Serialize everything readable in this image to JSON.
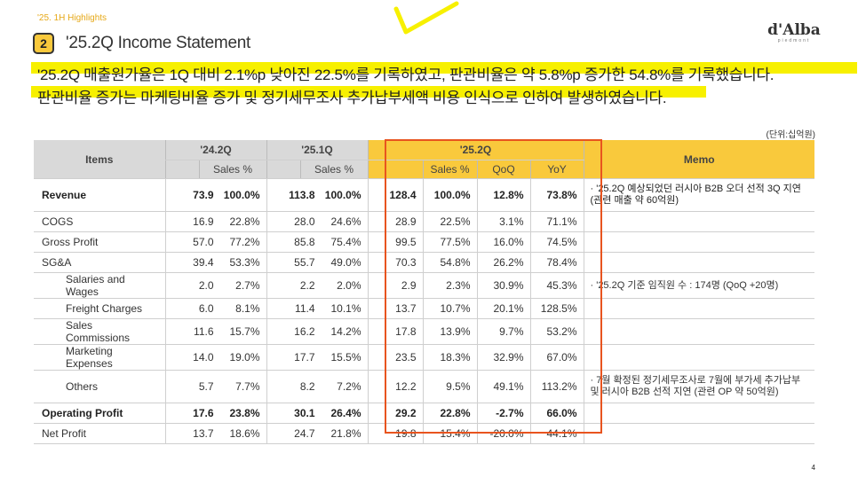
{
  "header": {
    "section_tag": "'25. 1H Highlights",
    "number": "2",
    "title": "'25.2Q Income Statement",
    "logo_word": "d'Alba",
    "logo_sub": "piedmont"
  },
  "summary": {
    "line1": "'25.2Q 매출원가율은 1Q 대비 2.1%p 낮아진 22.5%를 기록하였고, 판관비율은 약 5.8%p 증가한 54.8%를 기록했습니다.",
    "line2": "판관비율 증가는 마케팅비율 증가 및 정기세무조사 추가납부세액 비용 인식으로 인하여 발생하였습니다."
  },
  "unit_label": "(단위:십억원)",
  "table": {
    "headers": {
      "items": "Items",
      "p1": "'24.2Q",
      "p2": "'25.1Q",
      "p3": "'25.2Q",
      "memo": "Memo",
      "sales_pct": "Sales %",
      "qoq": "QoQ",
      "yoy": "YoY"
    },
    "rows": [
      {
        "label": "Revenue",
        "v1": "73.9",
        "s1": "100.0%",
        "v2": "113.8",
        "s2": "100.0%",
        "v3": "128.4",
        "s3": "100.0%",
        "qoq": "12.8%",
        "yoy": "73.8%",
        "memo": "· '25.2Q 예상되었던 러시아 B2B 오더 선적 3Q 지연 (관련 매출 약 60억원)"
      },
      {
        "label": "COGS",
        "v1": "16.9",
        "s1": "22.8%",
        "v2": "28.0",
        "s2": "24.6%",
        "v3": "28.9",
        "s3": "22.5%",
        "qoq": "3.1%",
        "yoy": "71.1%",
        "memo": ""
      },
      {
        "label": "Gross Profit",
        "v1": "57.0",
        "s1": "77.2%",
        "v2": "85.8",
        "s2": "75.4%",
        "v3": "99.5",
        "s3": "77.5%",
        "qoq": "16.0%",
        "yoy": "74.5%",
        "memo": ""
      },
      {
        "label": "SG&A",
        "v1": "39.4",
        "s1": "53.3%",
        "v2": "55.7",
        "s2": "49.0%",
        "v3": "70.3",
        "s3": "54.8%",
        "qoq": "26.2%",
        "yoy": "78.4%",
        "memo": ""
      },
      {
        "label": "Salaries and Wages",
        "v1": "2.0",
        "s1": "2.7%",
        "v2": "2.2",
        "s2": "2.0%",
        "v3": "2.9",
        "s3": "2.3%",
        "qoq": "30.9%",
        "yoy": "45.3%",
        "memo": "· '25.2Q 기준 임직원 수 : 174명 (QoQ +20명)"
      },
      {
        "label": "Freight Charges",
        "v1": "6.0",
        "s1": "8.1%",
        "v2": "11.4",
        "s2": "10.1%",
        "v3": "13.7",
        "s3": "10.7%",
        "qoq": "20.1%",
        "yoy": "128.5%",
        "memo": ""
      },
      {
        "label": "Sales Commissions",
        "v1": "11.6",
        "s1": "15.7%",
        "v2": "16.2",
        "s2": "14.2%",
        "v3": "17.8",
        "s3": "13.9%",
        "qoq": "9.7%",
        "yoy": "53.2%",
        "memo": ""
      },
      {
        "label": "Marketing Expenses",
        "v1": "14.0",
        "s1": "19.0%",
        "v2": "17.7",
        "s2": "15.5%",
        "v3": "23.5",
        "s3": "18.3%",
        "qoq": "32.9%",
        "yoy": "67.0%",
        "memo": ""
      },
      {
        "label": "Others",
        "v1": "5.7",
        "s1": "7.7%",
        "v2": "8.2",
        "s2": "7.2%",
        "v3": "12.2",
        "s3": "9.5%",
        "qoq": "49.1%",
        "yoy": "113.2%",
        "memo": "· 7월 확정된 정기세무조사로 7월에 부가세 추가납부 및 러시아 B2B 선적 지연 (관련 OP 약 50억원)"
      },
      {
        "label": "Operating Profit",
        "v1": "17.6",
        "s1": "23.8%",
        "v2": "30.1",
        "s2": "26.4%",
        "v3": "29.2",
        "s3": "22.8%",
        "qoq": "-2.7%",
        "yoy": "66.0%",
        "memo": ""
      },
      {
        "label": "Net Profit",
        "v1": "13.7",
        "s1": "18.6%",
        "v2": "24.7",
        "s2": "21.8%",
        "v3": "19.8",
        "s3": "15.4%",
        "qoq": "-20.0%",
        "yoy": "44.1%",
        "memo": ""
      }
    ]
  },
  "page_number": "4",
  "colors": {
    "accent": "#F9C93C",
    "highlight": "#F7F000",
    "box": "#E8541F",
    "header_gray": "#D9D9D9"
  }
}
